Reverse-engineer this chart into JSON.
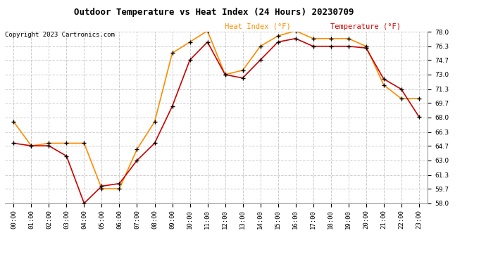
{
  "title": "Outdoor Temperature vs Heat Index (24 Hours) 20230709",
  "copyright": "Copyright 2023 Cartronics.com",
  "hours": [
    "00:00",
    "01:00",
    "02:00",
    "03:00",
    "04:00",
    "05:00",
    "06:00",
    "07:00",
    "08:00",
    "09:00",
    "10:00",
    "11:00",
    "12:00",
    "13:00",
    "14:00",
    "15:00",
    "16:00",
    "17:00",
    "18:00",
    "19:00",
    "20:00",
    "21:00",
    "22:00",
    "23:00"
  ],
  "temperature": [
    65.0,
    64.7,
    64.7,
    63.5,
    58.0,
    60.0,
    60.3,
    63.0,
    65.0,
    69.3,
    74.7,
    76.8,
    73.0,
    72.6,
    74.7,
    76.8,
    77.2,
    76.3,
    76.3,
    76.3,
    76.1,
    72.5,
    71.3,
    68.1
  ],
  "heat_index": [
    67.5,
    64.7,
    65.0,
    65.0,
    65.0,
    59.7,
    59.7,
    64.3,
    67.5,
    75.5,
    76.8,
    78.1,
    73.0,
    73.5,
    76.3,
    77.5,
    78.1,
    77.2,
    77.2,
    77.2,
    76.3,
    71.8,
    70.2,
    70.2
  ],
  "ylim_min": 58.0,
  "ylim_max": 78.0,
  "yticks": [
    58.0,
    59.7,
    61.3,
    63.0,
    64.7,
    66.3,
    68.0,
    69.7,
    71.3,
    73.0,
    74.7,
    76.3,
    78.0
  ],
  "color_heat": "#FF8C00",
  "color_temp": "#CC0000",
  "color_marker": "#000000",
  "bg_color": "#FFFFFF",
  "grid_color": "#CCCCCC",
  "title_color": "#000000",
  "copyright_color": "#000000",
  "legend_heat_color": "#FF8C00",
  "legend_temp_color": "#CC0000"
}
